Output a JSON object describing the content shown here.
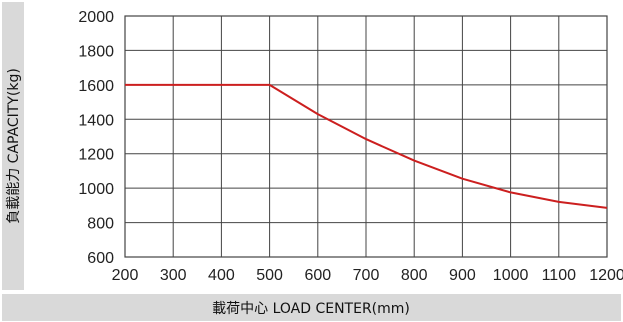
{
  "chart_data": {
    "type": "line",
    "xlabel": "載荷中心 LOAD CENTER(mm)",
    "ylabel": "負載能力 CAPACITY(kg)",
    "xlim": [
      200,
      1200
    ],
    "ylim": [
      600,
      2000
    ],
    "x_ticks": [
      200,
      300,
      400,
      500,
      600,
      700,
      800,
      900,
      1000,
      1100,
      1200
    ],
    "y_ticks": [
      600,
      800,
      1000,
      1200,
      1400,
      1600,
      1800,
      2000
    ],
    "grid": true,
    "series": [
      {
        "color": "#cc1f1f",
        "x": [
          200,
          300,
          400,
          500,
          600,
          700,
          800,
          900,
          1000,
          1100,
          1200
        ],
        "y": [
          1600,
          1600,
          1600,
          1600,
          1430,
          1285,
          1160,
          1055,
          975,
          920,
          885
        ]
      }
    ],
    "colors": {
      "line": "#cc1f1f",
      "grid": "#444444",
      "label_band": "#d9d9d9"
    }
  }
}
